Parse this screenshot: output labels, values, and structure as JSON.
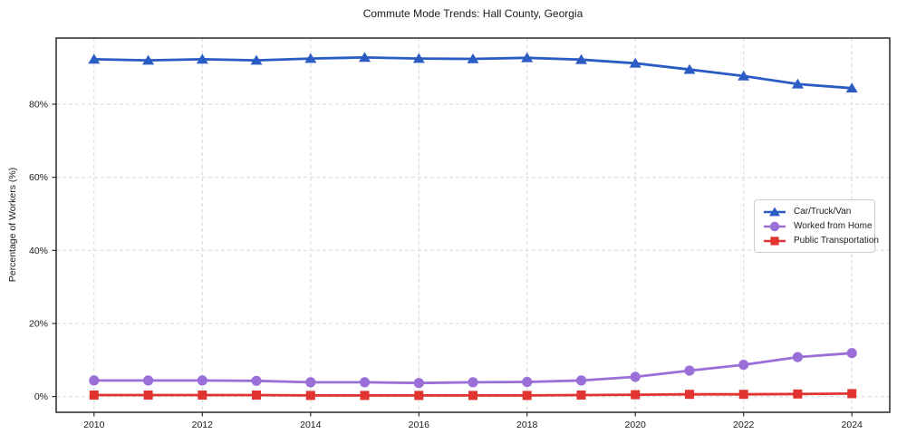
{
  "chart_data": {
    "type": "line",
    "title": "Commute Mode Trends: Hall County, Georgia",
    "xlabel": "",
    "ylabel": "Percentage of Workers (%)",
    "grid": true,
    "legend_position": "center right",
    "x": [
      2010,
      2011,
      2012,
      2013,
      2014,
      2015,
      2016,
      2017,
      2018,
      2019,
      2020,
      2021,
      2022,
      2023,
      2024
    ],
    "xticks": [
      2010,
      2012,
      2014,
      2016,
      2018,
      2020,
      2022,
      2024
    ],
    "xtick_labels": [
      "2010",
      "2012",
      "2014",
      "2016",
      "2018",
      "2020",
      "2022",
      "2024"
    ],
    "yticks": [
      0,
      20,
      40,
      60,
      80
    ],
    "ytick_labels": [
      "0%",
      "20%",
      "40%",
      "60%",
      "80%"
    ],
    "xlim": [
      2009.3,
      2024.7
    ],
    "ylim": [
      -4.3,
      98.1
    ],
    "series": [
      {
        "name": "Car/Truck/Van",
        "color": "#2b5cc4",
        "marker": "triangle",
        "values": [
          92.3,
          92.0,
          92.3,
          92.0,
          92.5,
          92.8,
          92.5,
          92.4,
          92.7,
          92.2,
          91.2,
          89.5,
          87.7,
          85.5,
          84.4
        ]
      },
      {
        "name": "Worked from Home",
        "color": "#9a6fd8",
        "marker": "circle",
        "values": [
          4.4,
          4.4,
          4.4,
          4.3,
          3.9,
          3.9,
          3.7,
          3.9,
          4.0,
          4.4,
          5.4,
          7.1,
          8.7,
          10.8,
          11.9
        ]
      },
      {
        "name": "Public Transportation",
        "color": "#e13430",
        "marker": "square",
        "values": [
          0.4,
          0.4,
          0.4,
          0.4,
          0.3,
          0.3,
          0.3,
          0.3,
          0.3,
          0.4,
          0.5,
          0.6,
          0.6,
          0.7,
          0.8
        ]
      }
    ]
  }
}
